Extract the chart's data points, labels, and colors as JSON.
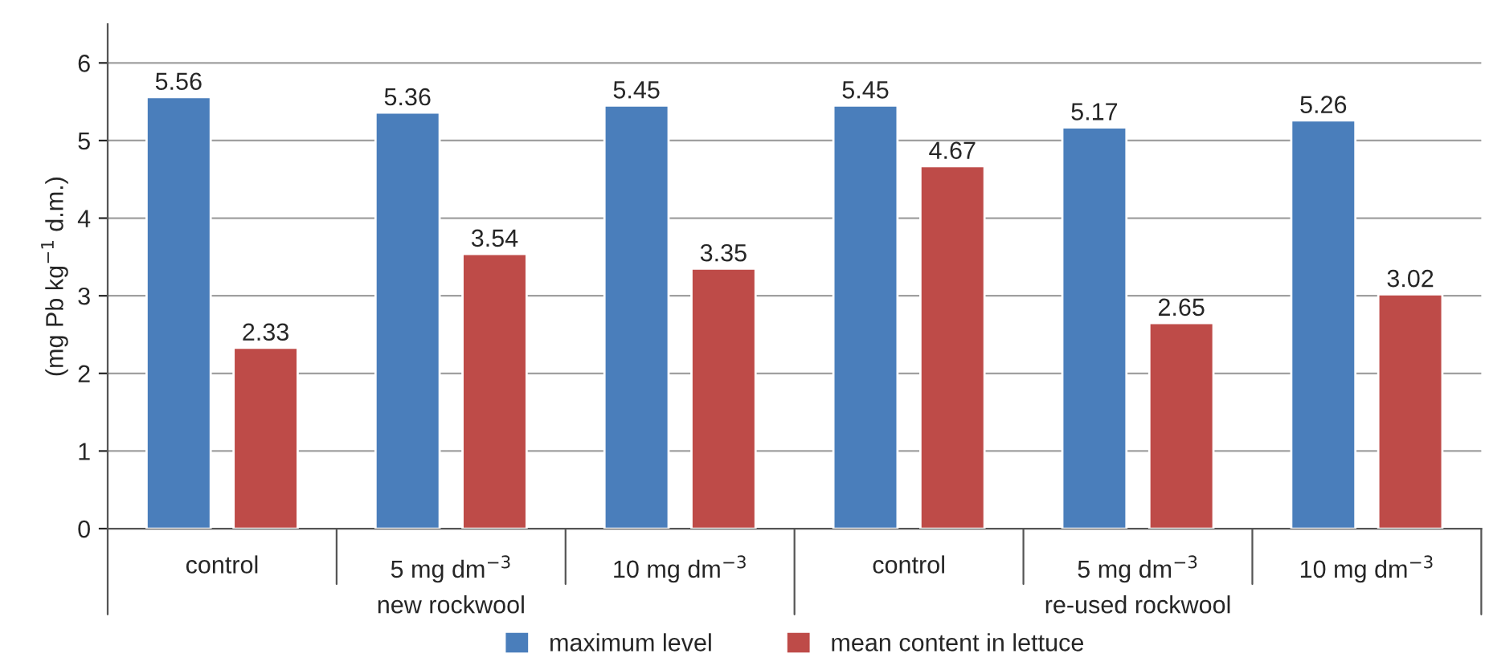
{
  "chart_data": {
    "type": "bar",
    "categories": [
      "control",
      "5 mg dm$^{−3}$",
      "10 mg dm$^{−3}$",
      "control",
      "5 mg dm$^{−3}$",
      "10 mg dm$^{−3}$"
    ],
    "ylabel": "(mg Pb kg$^{−1}$ d.m.)",
    "series": [
      {
        "name": "maximum level",
        "color": "#4a7ebb",
        "values": [
          5.56,
          5.36,
          5.45,
          5.45,
          5.17,
          5.26
        ]
      },
      {
        "name": "mean content in lettuce",
        "color": "#be4b48",
        "values": [
          2.33,
          3.54,
          3.35,
          4.67,
          2.65,
          3.02
        ]
      }
    ],
    "annotations": [
      "new rockwool",
      "re-used rockwool"
    ],
    "ylim": [
      0,
      6.5
    ],
    "yticks": [
      0,
      1,
      2,
      3,
      4,
      5,
      6
    ],
    "grid": "y",
    "legend": "bottom",
    "data_labels": true
  }
}
